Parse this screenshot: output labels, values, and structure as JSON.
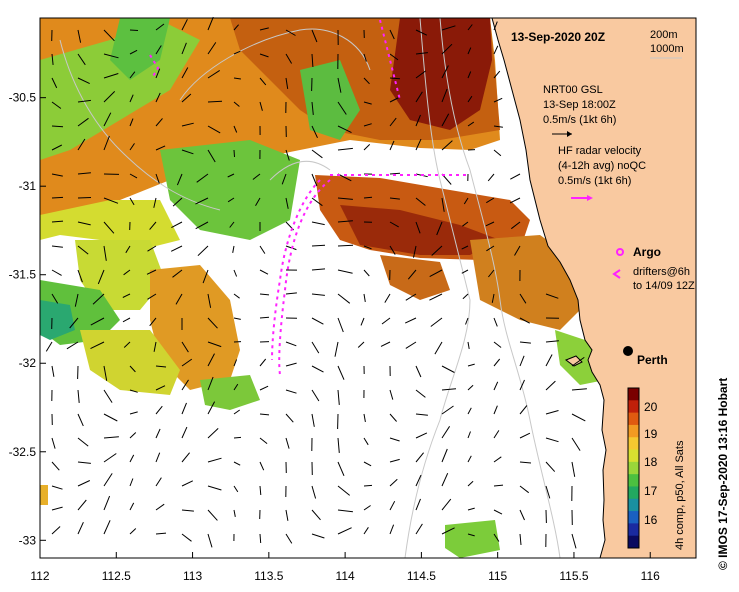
{
  "map": {
    "title": "13-Sep-2020 20Z",
    "depth_contours": [
      "200m",
      "1000m"
    ],
    "lon_ticks": [
      "112",
      "112.5",
      "113",
      "113.5",
      "114",
      "114.5",
      "115",
      "115.5",
      "116"
    ],
    "lat_ticks": [
      "-30.5",
      "-31",
      "-31.5",
      "-32",
      "-32.5",
      "-33"
    ],
    "city": "Perth",
    "lon_range": [
      112,
      116.3
    ],
    "lat_range": [
      -33.1,
      -30.05
    ]
  },
  "legend": {
    "gsl_title": "NRT00 GSL",
    "gsl_time": "13-Sep 18:00Z",
    "gsl_scale": "0.5m/s (1kt 6h)",
    "hf_title": "HF radar velocity",
    "hf_avg": "(4-12h avg) noQC",
    "hf_scale": "0.5m/s (1kt 6h)",
    "argo": "Argo",
    "drifters_1": "drifters@6h",
    "drifters_2": "to 14/09 12Z"
  },
  "colorbar": {
    "ticks": [
      "20",
      "19",
      "18",
      "17",
      "16"
    ],
    "label": "4h comp, p50, All Sats",
    "colors": [
      "#7a0000",
      "#c0200a",
      "#e05a10",
      "#f29a22",
      "#f5c830",
      "#d8e030",
      "#9ad63a",
      "#4cc040",
      "#22a860",
      "#1a90a0",
      "#1a60c0",
      "#1a2aa0",
      "#0a0a60"
    ]
  },
  "credit": "© IMOS 17-Sep-2020 13:16 Hobart",
  "colors": {
    "land": "#f9c9a0",
    "drifter": "#ff22ff",
    "contour": "#c8c8c8"
  }
}
